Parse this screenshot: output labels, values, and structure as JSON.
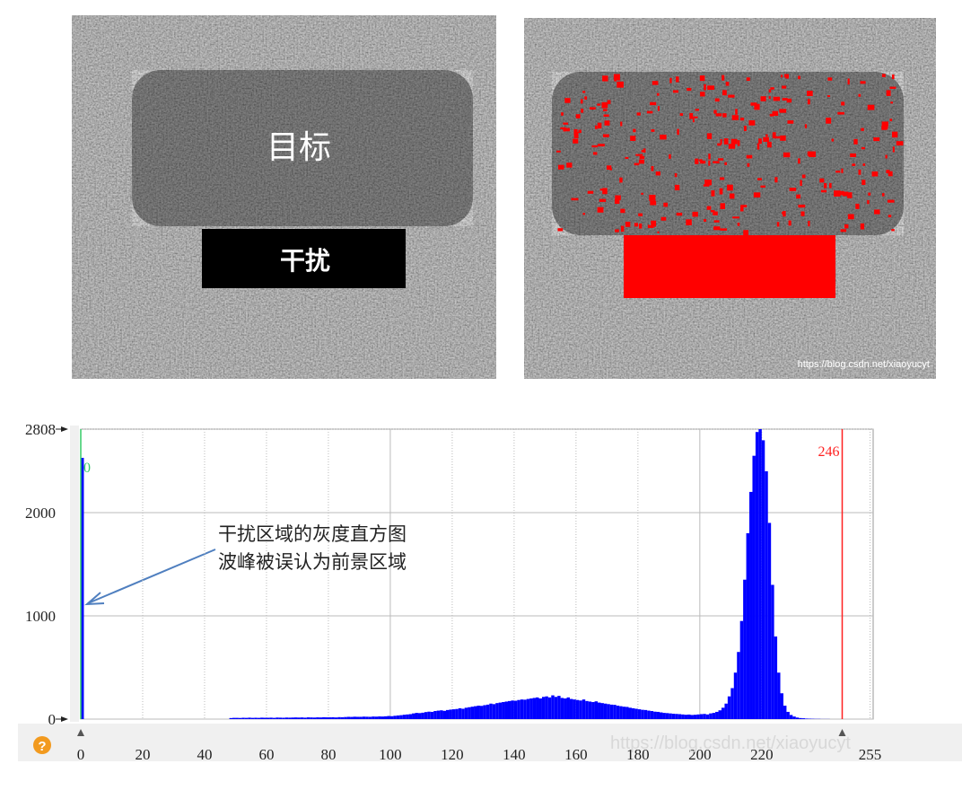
{
  "images": {
    "target": "目标",
    "interference": "干扰",
    "watermark": "https://blog.csdn.net/xiaoyucyt"
  },
  "chart_data": {
    "type": "histogram",
    "bins": [
      0,
      1,
      2,
      3,
      4,
      5,
      6,
      7,
      8,
      9,
      10,
      11,
      12,
      13,
      14,
      15,
      16,
      17,
      18,
      19,
      20,
      21,
      22,
      23,
      24,
      25,
      26,
      27,
      28,
      29,
      30,
      31,
      32,
      33,
      34,
      35,
      36,
      37,
      38,
      39,
      40,
      41,
      42,
      43,
      44,
      45,
      46,
      47,
      48,
      49,
      50,
      51,
      52,
      53,
      54,
      55,
      56,
      57,
      58,
      59,
      60,
      61,
      62,
      63,
      64,
      65,
      66,
      67,
      68,
      69,
      70,
      71,
      72,
      73,
      74,
      75,
      76,
      77,
      78,
      79,
      80,
      81,
      82,
      83,
      84,
      85,
      86,
      87,
      88,
      89,
      90,
      91,
      92,
      93,
      94,
      95,
      96,
      97,
      98,
      99,
      100,
      101,
      102,
      103,
      104,
      105,
      106,
      107,
      108,
      109,
      110,
      111,
      112,
      113,
      114,
      115,
      116,
      117,
      118,
      119,
      120,
      121,
      122,
      123,
      124,
      125,
      126,
      127,
      128,
      129,
      130,
      131,
      132,
      133,
      134,
      135,
      136,
      137,
      138,
      139,
      140,
      141,
      142,
      143,
      144,
      145,
      146,
      147,
      148,
      149,
      150,
      151,
      152,
      153,
      154,
      155,
      156,
      157,
      158,
      159,
      160,
      161,
      162,
      163,
      164,
      165,
      166,
      167,
      168,
      169,
      170,
      171,
      172,
      173,
      174,
      175,
      176,
      177,
      178,
      179,
      180,
      181,
      182,
      183,
      184,
      185,
      186,
      187,
      188,
      189,
      190,
      191,
      192,
      193,
      194,
      195,
      196,
      197,
      198,
      199,
      200,
      201,
      202,
      203,
      204,
      205,
      206,
      207,
      208,
      209,
      210,
      211,
      212,
      213,
      214,
      215,
      216,
      217,
      218,
      219,
      220,
      221,
      222,
      223,
      224,
      225,
      226,
      227,
      228,
      229,
      230,
      231,
      232,
      233,
      234,
      235,
      236,
      237,
      238,
      239,
      240,
      241,
      242,
      243,
      244,
      245,
      246,
      247,
      248,
      249,
      250,
      251,
      252,
      253,
      254,
      255,
      256
    ],
    "values": [
      2530,
      0,
      0,
      0,
      0,
      0,
      0,
      0,
      0,
      0,
      0,
      0,
      0,
      0,
      0,
      0,
      0,
      0,
      0,
      0,
      0,
      0,
      0,
      0,
      0,
      0,
      0,
      0,
      0,
      0,
      0,
      0,
      0,
      0,
      0,
      0,
      0,
      0,
      0,
      0,
      0,
      0,
      0,
      0,
      0,
      0,
      0,
      0,
      10,
      12,
      12,
      11,
      13,
      12,
      14,
      12,
      13,
      12,
      14,
      13,
      13,
      14,
      12,
      15,
      14,
      13,
      15,
      14,
      15,
      16,
      15,
      16,
      14,
      17,
      16,
      15,
      17,
      16,
      18,
      17,
      17,
      18,
      16,
      19,
      18,
      20,
      22,
      21,
      23,
      22,
      22,
      24,
      23,
      22,
      25,
      24,
      26,
      25,
      27,
      30,
      28,
      32,
      35,
      38,
      42,
      45,
      48,
      55,
      60,
      58,
      62,
      68,
      72,
      70,
      78,
      82,
      85,
      80,
      88,
      92,
      95,
      98,
      105,
      100,
      110,
      115,
      120,
      125,
      130,
      128,
      135,
      140,
      150,
      145,
      155,
      160,
      165,
      170,
      175,
      180,
      178,
      185,
      190,
      188,
      195,
      200,
      205,
      210,
      200,
      215,
      220,
      210,
      230,
      215,
      225,
      205,
      200,
      210,
      195,
      190,
      185,
      180,
      190,
      175,
      170,
      165,
      172,
      160,
      155,
      150,
      145,
      140,
      138,
      130,
      125,
      120,
      118,
      110,
      105,
      100,
      95,
      90,
      88,
      82,
      78,
      72,
      70,
      65,
      60,
      58,
      55,
      52,
      50,
      48,
      45,
      42,
      44,
      40,
      42,
      45,
      48,
      50,
      45,
      55,
      60,
      70,
      85,
      110,
      150,
      220,
      300,
      450,
      650,
      950,
      1350,
      1800,
      2200,
      2550,
      2780,
      2808,
      2700,
      2400,
      1900,
      1300,
      800,
      450,
      250,
      130,
      70,
      40,
      25,
      15,
      10,
      8,
      5,
      4,
      3,
      2,
      2,
      1,
      1,
      1,
      0,
      0,
      0,
      0,
      0,
      0,
      0,
      0,
      0,
      0,
      0,
      0,
      0,
      0
    ],
    "color": "#0000ff",
    "xlim": [
      0,
      256
    ],
    "ylim": [
      0,
      2808
    ],
    "xticks": [
      0,
      20,
      40,
      60,
      80,
      100,
      120,
      140,
      160,
      180,
      200,
      220,
      255
    ],
    "yticks": [
      0,
      1000,
      2000,
      2808
    ],
    "grid": true,
    "thresholds": [
      {
        "value": 0,
        "color": "#33cc66"
      },
      {
        "value": 246,
        "color": "#ff2020"
      }
    ],
    "annotation": [
      "干扰区域的灰度直方图",
      "波峰被误认为前景区域"
    ],
    "watermark": "https://blog.csdn.net/xiaoyucyt"
  }
}
